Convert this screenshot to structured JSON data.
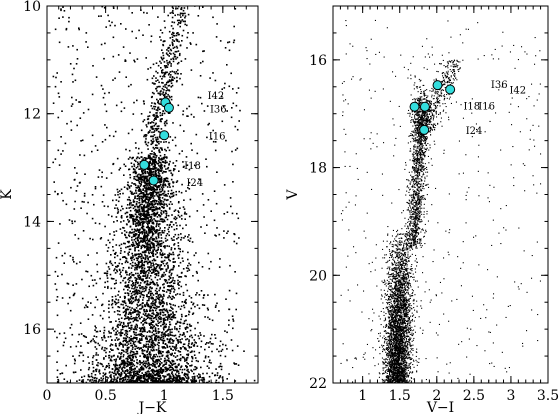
{
  "chart_data": [
    {
      "type": "scatter",
      "xlabel": "J−K",
      "ylabel": "K",
      "xlim": [
        0,
        1.8
      ],
      "ylim": [
        17,
        10
      ],
      "y_inverted": true,
      "xticks": [
        0,
        0.5,
        1,
        1.5
      ],
      "xtick_labels": [
        "0",
        "0.5",
        "1",
        "1.5"
      ],
      "yticks": [
        10,
        12,
        14,
        16
      ],
      "ytick_labels": [
        "10",
        "12",
        "14",
        "16"
      ],
      "grid": false,
      "highlighted_stars": [
        {
          "label": "I42",
          "x": 1.01,
          "y": 11.79
        },
        {
          "label": "I36",
          "x": 1.04,
          "y": 11.89
        },
        {
          "label": "I16",
          "x": 1.0,
          "y": 12.4
        },
        {
          "label": "I18",
          "x": 0.83,
          "y": 12.95
        },
        {
          "label": "I24",
          "x": 0.91,
          "y": 13.24
        }
      ],
      "annotations": [
        {
          "text": "I42",
          "x": 1.37,
          "y": 11.65
        },
        {
          "text": "I36",
          "x": 1.39,
          "y": 11.9
        },
        {
          "text": "I16",
          "x": 1.38,
          "y": 12.4
        },
        {
          "text": "I18",
          "x": 1.17,
          "y": 12.95
        },
        {
          "text": "I24",
          "x": 1.19,
          "y": 13.27
        }
      ],
      "field_stars": {
        "n": 5200,
        "seed": 11
      }
    },
    {
      "type": "scatter",
      "xlabel": "V−I",
      "ylabel": "V",
      "xlim": [
        0.6,
        3.5
      ],
      "ylim": [
        22,
        15
      ],
      "y_inverted": true,
      "xticks": [
        1,
        1.5,
        2,
        2.5,
        3,
        3.5
      ],
      "xtick_labels": [
        "1",
        "1.5",
        "2",
        "2.5",
        "3",
        "3.5"
      ],
      "yticks": [
        16,
        18,
        20,
        22
      ],
      "ytick_labels": [
        "16",
        "18",
        "20",
        "22"
      ],
      "grid": false,
      "highlighted_stars": [
        {
          "label": "I42",
          "x": 2.01,
          "y": 16.47
        },
        {
          "label": "I36",
          "x": 2.18,
          "y": 16.55
        },
        {
          "label": "I18",
          "x": 1.7,
          "y": 16.87
        },
        {
          "label": "I16",
          "x": 1.84,
          "y": 16.87
        },
        {
          "label": "I24",
          "x": 1.83,
          "y": 17.3
        }
      ],
      "annotations": [
        {
          "text": "I36",
          "x": 2.73,
          "y": 16.45
        },
        {
          "text": "I42",
          "x": 2.98,
          "y": 16.55
        },
        {
          "text": "I18",
          "x": 2.36,
          "y": 16.85
        },
        {
          "text": "I16",
          "x": 2.56,
          "y": 16.85
        },
        {
          "text": "I24",
          "x": 2.39,
          "y": 17.3
        }
      ],
      "field_stars": {
        "n": 5600,
        "seed": 29
      }
    }
  ]
}
